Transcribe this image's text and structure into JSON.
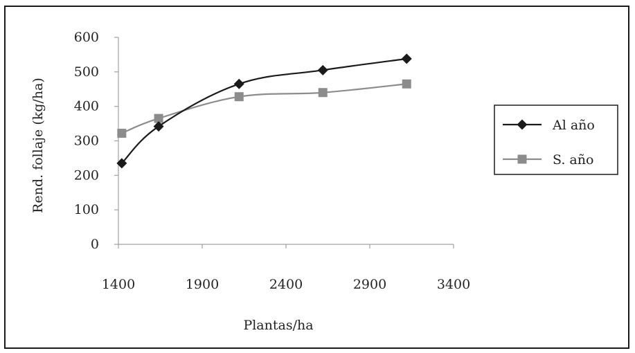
{
  "chart_data": {
    "type": "line",
    "title": "",
    "xlabel": "Plantas/ha",
    "ylabel": "Rend. follaje (kg/ha)",
    "xlim": [
      1400,
      3400
    ],
    "ylim": [
      0,
      600
    ],
    "xticks": [
      1400,
      1900,
      2400,
      2900,
      3400
    ],
    "yticks": [
      0,
      100,
      200,
      300,
      400,
      500,
      600
    ],
    "grid": false,
    "smooth": true,
    "legend_position": "right",
    "series": [
      {
        "name": "Al año",
        "color": "#1a1a1a",
        "marker": "diamond",
        "x": [
          1420,
          1640,
          2120,
          2620,
          3120
        ],
        "y": [
          235,
          342,
          465,
          505,
          538
        ]
      },
      {
        "name": "S. año",
        "color": "#8c8c8c",
        "marker": "square",
        "x": [
          1420,
          1640,
          2120,
          2620,
          3120
        ],
        "y": [
          322,
          365,
          428,
          440,
          465
        ]
      }
    ]
  }
}
